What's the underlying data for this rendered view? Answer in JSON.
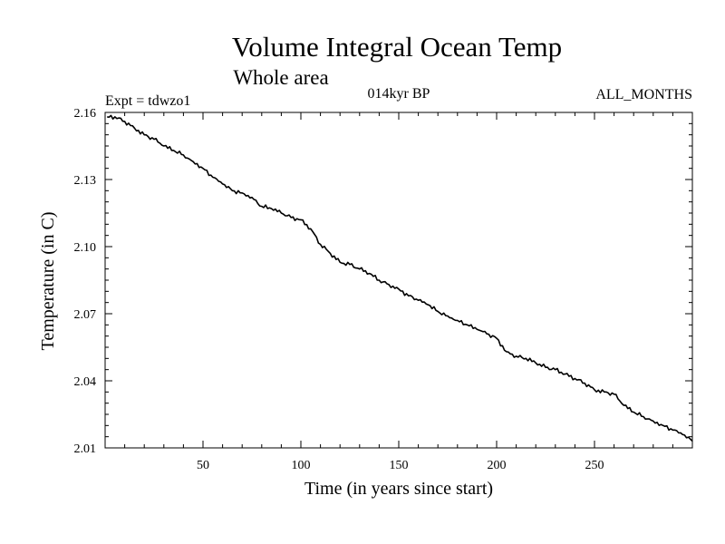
{
  "chart_data": {
    "type": "line",
    "title": "Volume Integral Ocean Temp",
    "subtitle": "Whole area",
    "experiment_label": "Expt = tdwzo1",
    "period_label": "014kyr BP",
    "months_label": "ALL_MONTHS",
    "xlabel": "Time (in years since start)",
    "ylabel": "Temperature (in C)",
    "xlim": [
      0,
      300
    ],
    "ylim": [
      2.01,
      2.16
    ],
    "xticks": [
      50,
      100,
      150,
      200,
      250
    ],
    "yticks": [
      2.01,
      2.04,
      2.07,
      2.1,
      2.13,
      2.16
    ],
    "ytick_labels": [
      "2.01",
      "2.04",
      "2.07",
      "2.10",
      "2.13",
      "2.16"
    ],
    "series": [
      {
        "name": "Volume Integral Ocean Temp",
        "color": "#000000",
        "x": [
          1,
          5,
          10,
          15,
          20,
          25,
          30,
          35,
          40,
          45,
          50,
          55,
          60,
          65,
          70,
          75,
          80,
          85,
          90,
          95,
          100,
          105,
          110,
          115,
          120,
          125,
          130,
          135,
          140,
          145,
          150,
          155,
          160,
          165,
          170,
          175,
          180,
          185,
          190,
          195,
          200,
          205,
          210,
          215,
          220,
          225,
          230,
          235,
          240,
          245,
          250,
          255,
          260,
          265,
          270,
          275,
          280,
          285,
          290,
          295,
          300
        ],
        "y": [
          2.158,
          2.158,
          2.156,
          2.153,
          2.15,
          2.148,
          2.145,
          2.143,
          2.141,
          2.138,
          2.135,
          2.131,
          2.128,
          2.125,
          2.124,
          2.122,
          2.118,
          2.117,
          2.115,
          2.113,
          2.112,
          2.108,
          2.101,
          2.097,
          2.093,
          2.092,
          2.09,
          2.088,
          2.085,
          2.083,
          2.081,
          2.078,
          2.076,
          2.074,
          2.071,
          2.069,
          2.067,
          2.065,
          2.063,
          2.061,
          2.059,
          2.053,
          2.051,
          2.05,
          2.048,
          2.046,
          2.045,
          2.043,
          2.041,
          2.039,
          2.036,
          2.035,
          2.034,
          2.029,
          2.026,
          2.024,
          2.022,
          2.02,
          2.018,
          2.016,
          2.013
        ]
      }
    ]
  }
}
